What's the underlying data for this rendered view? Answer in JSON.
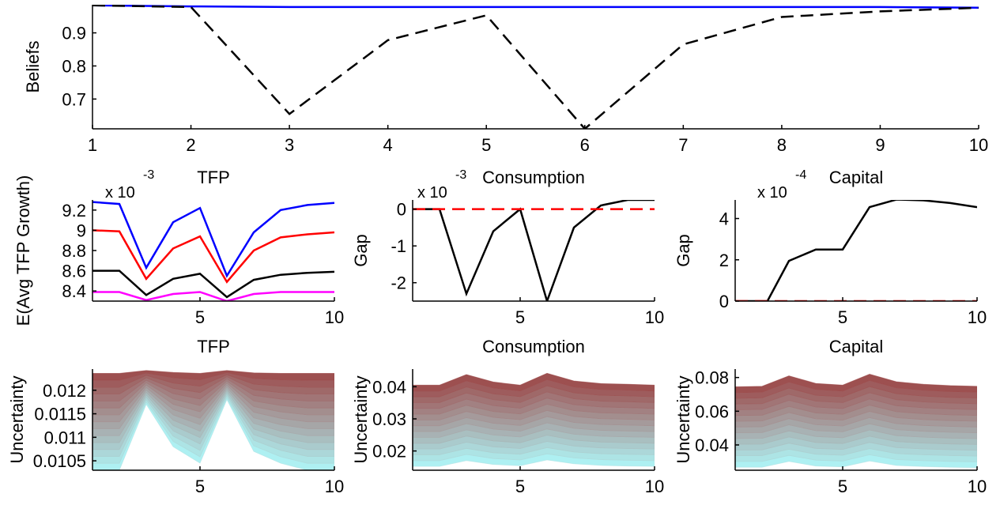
{
  "chart_data": [
    {
      "id": "beliefs",
      "type": "line",
      "title": "",
      "xlabel": "",
      "ylabel": "Beliefs",
      "xlim": [
        1,
        10
      ],
      "ylim": [
        0.61,
        0.985
      ],
      "xticks": [
        1,
        2,
        3,
        4,
        5,
        6,
        7,
        8,
        9,
        10
      ],
      "yticks": [
        0.7,
        0.8,
        0.9
      ],
      "ytick_labels": [
        "0.7",
        "0.8",
        "0.9"
      ],
      "series": [
        {
          "color": "#0000ff",
          "style": "solid",
          "x": [
            1,
            2,
            3,
            4,
            5,
            6,
            7,
            8,
            9,
            10
          ],
          "y": [
            0.983,
            0.98,
            0.978,
            0.978,
            0.978,
            0.978,
            0.978,
            0.978,
            0.978,
            0.976
          ]
        },
        {
          "color": "#000000",
          "style": "dashed",
          "x": [
            1,
            2,
            3,
            4,
            5,
            6,
            7,
            8,
            9,
            10
          ],
          "y": [
            0.983,
            0.978,
            0.655,
            0.878,
            0.953,
            0.61,
            0.865,
            0.948,
            0.965,
            0.976
          ]
        }
      ]
    },
    {
      "id": "tfp-mean",
      "type": "line",
      "title": "TFP",
      "xlabel": "",
      "ylabel": "E(Avg TFP Growth)",
      "axis_multiplier": "x 10",
      "axis_exponent": "-3",
      "xlim": [
        1,
        10
      ],
      "ylim": [
        8.3,
        9.3
      ],
      "xticks": [
        5,
        10
      ],
      "yticks": [
        8.4,
        8.6,
        8.8,
        9.0,
        9.2
      ],
      "ytick_labels": [
        "8.4",
        "8.6",
        "8.8",
        "9",
        "9.2"
      ],
      "series": [
        {
          "color": "#0000ff",
          "style": "solid",
          "x": [
            1,
            2,
            3,
            4,
            5,
            6,
            7,
            8,
            9,
            10
          ],
          "y": [
            9.28,
            9.26,
            8.63,
            9.08,
            9.22,
            8.55,
            8.98,
            9.2,
            9.25,
            9.27
          ]
        },
        {
          "color": "#ff0000",
          "style": "solid",
          "x": [
            1,
            2,
            3,
            4,
            5,
            6,
            7,
            8,
            9,
            10
          ],
          "y": [
            9.0,
            8.99,
            8.52,
            8.82,
            8.94,
            8.49,
            8.8,
            8.93,
            8.96,
            8.98
          ]
        },
        {
          "color": "#000000",
          "style": "solid",
          "x": [
            1,
            2,
            3,
            4,
            5,
            6,
            7,
            8,
            9,
            10
          ],
          "y": [
            8.6,
            8.6,
            8.36,
            8.52,
            8.57,
            8.34,
            8.51,
            8.56,
            8.58,
            8.59
          ]
        },
        {
          "color": "#ff00ff",
          "style": "solid",
          "x": [
            1,
            2,
            3,
            4,
            5,
            6,
            7,
            8,
            9,
            10
          ],
          "y": [
            8.39,
            8.39,
            8.31,
            8.37,
            8.39,
            8.3,
            8.37,
            8.39,
            8.39,
            8.39
          ]
        }
      ]
    },
    {
      "id": "consumption-gap",
      "type": "line",
      "title": "Consumption",
      "xlabel": "",
      "ylabel": "Gap",
      "axis_multiplier": "x 10",
      "axis_exponent": "-3",
      "xlim": [
        1,
        10
      ],
      "ylim": [
        -2.5,
        0.25
      ],
      "xticks": [
        5,
        10
      ],
      "yticks": [
        -2,
        -1,
        0
      ],
      "ytick_labels": [
        "-2",
        "-1",
        "0"
      ],
      "series": [
        {
          "color": "#000000",
          "style": "solid",
          "x": [
            1,
            2,
            3,
            4,
            5,
            6,
            7,
            8,
            9,
            10
          ],
          "y": [
            0.0,
            0.0,
            -2.3,
            -0.6,
            0.0,
            -2.5,
            -0.5,
            0.1,
            0.25,
            0.25
          ]
        },
        {
          "color": "#ff0000",
          "style": "dashed",
          "x": [
            1,
            10
          ],
          "y": [
            0,
            0
          ]
        }
      ]
    },
    {
      "id": "capital-gap",
      "type": "line",
      "title": "Capital",
      "xlabel": "",
      "ylabel": "Gap",
      "axis_multiplier": "x 10",
      "axis_exponent": "-4",
      "xlim": [
        1,
        10
      ],
      "ylim": [
        0,
        4.9
      ],
      "xticks": [
        5,
        10
      ],
      "yticks": [
        0,
        2,
        4
      ],
      "ytick_labels": [
        "0",
        "2",
        "4"
      ],
      "series": [
        {
          "color": "#000000",
          "style": "solid",
          "x": [
            1,
            2,
            2.2,
            3,
            4,
            5,
            6,
            7,
            8,
            9,
            10
          ],
          "y": [
            0,
            0,
            0,
            1.95,
            2.5,
            2.5,
            4.55,
            4.92,
            4.88,
            4.75,
            4.55
          ]
        },
        {
          "color": "#ff0000",
          "style": "dashed",
          "x": [
            1,
            10
          ],
          "y": [
            0,
            0
          ]
        }
      ]
    },
    {
      "id": "tfp-uncertainty",
      "type": "area",
      "title": "TFP",
      "xlabel": "",
      "ylabel": "Uncertainty",
      "xlim": [
        1,
        10
      ],
      "ylim": [
        0.0103,
        0.01245
      ],
      "xticks": [
        5,
        10
      ],
      "yticks": [
        0.0105,
        0.011,
        0.0115,
        0.012
      ],
      "ytick_labels": [
        "0.0105",
        "0.011",
        "0.0115",
        "0.012"
      ],
      "bands": 14,
      "color_low": "#aff6f8",
      "color_high": "#9c4a4a",
      "x": [
        1,
        2,
        3,
        4,
        5,
        6,
        7,
        8,
        9,
        10
      ],
      "upper": [
        0.01236,
        0.01236,
        0.01242,
        0.01238,
        0.01236,
        0.01242,
        0.01237,
        0.01236,
        0.01236,
        0.01236
      ],
      "lower": [
        0.0103,
        0.0103,
        0.0117,
        0.0108,
        0.01045,
        0.0118,
        0.0107,
        0.01045,
        0.0103,
        0.0103
      ]
    },
    {
      "id": "consumption-uncertainty",
      "type": "area",
      "title": "Consumption",
      "xlabel": "",
      "ylabel": "Uncertainty",
      "xlim": [
        1,
        10
      ],
      "ylim": [
        0.014,
        0.0455
      ],
      "xticks": [
        5,
        10
      ],
      "yticks": [
        0.02,
        0.03,
        0.04
      ],
      "ytick_labels": [
        "0.02",
        "0.03",
        "0.04"
      ],
      "bands": 14,
      "color_low": "#aff6f8",
      "color_high": "#9c4a4a",
      "x": [
        1,
        2,
        3,
        4,
        5,
        6,
        7,
        8,
        9,
        10
      ],
      "upper": [
        0.0405,
        0.0405,
        0.0438,
        0.0415,
        0.0405,
        0.0442,
        0.0418,
        0.041,
        0.0408,
        0.0405
      ],
      "lower": [
        0.0152,
        0.0152,
        0.017,
        0.0158,
        0.0154,
        0.0172,
        0.016,
        0.0155,
        0.0153,
        0.0152
      ]
    },
    {
      "id": "capital-uncertainty",
      "type": "area",
      "title": "Capital",
      "xlabel": "",
      "ylabel": "Uncertainty",
      "xlim": [
        1,
        10
      ],
      "ylim": [
        0.025,
        0.085
      ],
      "xticks": [
        5,
        10
      ],
      "yticks": [
        0.04,
        0.06,
        0.08
      ],
      "ytick_labels": [
        "0.04",
        "0.06",
        "0.08"
      ],
      "bands": 14,
      "color_low": "#aff6f8",
      "color_high": "#9c4a4a",
      "x": [
        1,
        2,
        3,
        4,
        5,
        6,
        7,
        8,
        9,
        10
      ],
      "upper": [
        0.0745,
        0.0748,
        0.081,
        0.0765,
        0.0755,
        0.082,
        0.0775,
        0.076,
        0.0752,
        0.0748
      ],
      "lower": [
        0.0268,
        0.0268,
        0.0302,
        0.0275,
        0.027,
        0.0305,
        0.0278,
        0.0272,
        0.0268,
        0.0265
      ]
    }
  ]
}
